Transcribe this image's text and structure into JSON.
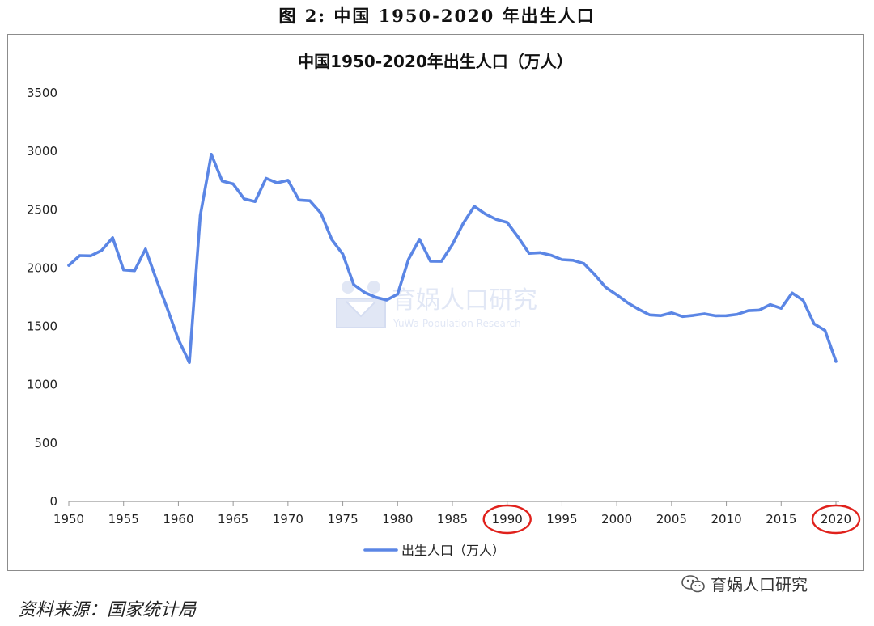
{
  "figure_title": "图 2: 中国 1950-2020 年出生人口",
  "source_note": "资料来源：国家统计局",
  "watermark": {
    "center_text": "育娲人口研究",
    "center_subtext": "YuWa Population Research",
    "badge_text": "育娲人口研究"
  },
  "colors": {
    "line": "#5b86e5",
    "highlight_circle": "#e0211c",
    "axis": "#999999",
    "watermark": "#c9d4ee"
  },
  "highlighted_ticks": [
    "1990",
    "2020"
  ],
  "chart_data": {
    "type": "line",
    "title": "中国1950-2020年出生人口（万人）",
    "xlabel": "",
    "ylabel": "",
    "xlim": [
      1950,
      2020
    ],
    "ylim": [
      0,
      3500
    ],
    "x_ticks": [
      "1950",
      "1955",
      "1960",
      "1965",
      "1970",
      "1975",
      "1980",
      "1985",
      "1990",
      "1995",
      "2000",
      "2005",
      "2010",
      "2015",
      "2020"
    ],
    "y_ticks": [
      "0",
      "500",
      "1000",
      "1500",
      "2000",
      "2500",
      "3000",
      "3500"
    ],
    "grid": false,
    "legend_position": "bottom",
    "series": [
      {
        "name": "出生人口（万人）",
        "x": [
          1950,
          1951,
          1952,
          1953,
          1954,
          1955,
          1956,
          1957,
          1958,
          1959,
          1960,
          1961,
          1962,
          1963,
          1964,
          1965,
          1966,
          1967,
          1968,
          1969,
          1970,
          1971,
          1972,
          1973,
          1974,
          1975,
          1976,
          1977,
          1978,
          1979,
          1980,
          1981,
          1982,
          1983,
          1984,
          1985,
          1986,
          1987,
          1988,
          1989,
          1990,
          1991,
          1992,
          1993,
          1994,
          1995,
          1996,
          1997,
          1998,
          1999,
          2000,
          2001,
          2002,
          2003,
          2004,
          2005,
          2006,
          2007,
          2008,
          2009,
          2010,
          2011,
          2012,
          2013,
          2014,
          2015,
          2016,
          2017,
          2018,
          2019,
          2020
        ],
        "values": [
          2023,
          2107,
          2105,
          2151,
          2260,
          1984,
          1977,
          2163,
          1900,
          1650,
          1389,
          1190,
          2451,
          2975,
          2745,
          2721,
          2593,
          2570,
          2769,
          2730,
          2752,
          2583,
          2577,
          2470,
          2244,
          2119,
          1858,
          1790,
          1750,
          1726,
          1776,
          2075,
          2246,
          2059,
          2058,
          2202,
          2384,
          2529,
          2464,
          2417,
          2391,
          2265,
          2126,
          2132,
          2110,
          2072,
          2067,
          2038,
          1942,
          1834,
          1771,
          1702,
          1647,
          1599,
          1593,
          1617,
          1585,
          1595,
          1608,
          1591,
          1592,
          1604,
          1635,
          1640,
          1687,
          1655,
          1786,
          1723,
          1523,
          1465,
          1200
        ]
      }
    ]
  }
}
